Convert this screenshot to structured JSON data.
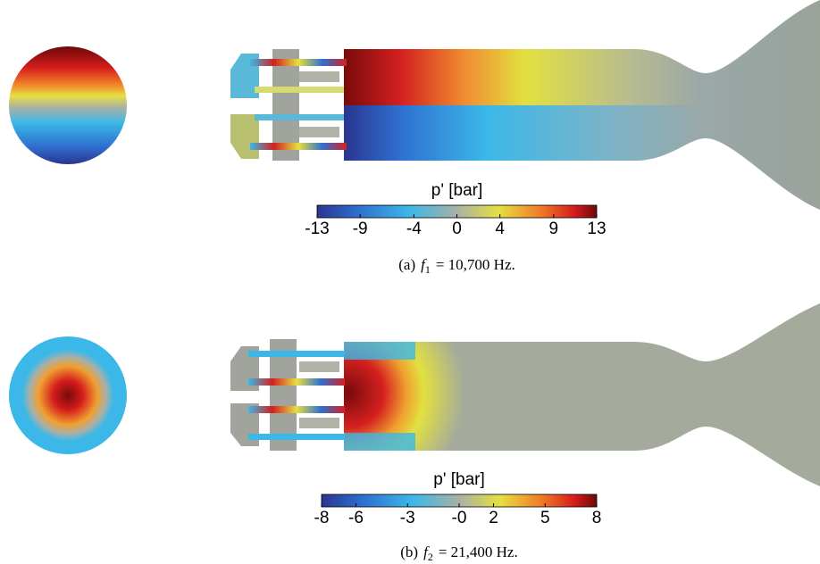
{
  "panels": [
    {
      "colorbar": {
        "label": "p' [bar]",
        "min": -13,
        "max": 13,
        "ticks": [
          -13,
          -9,
          -4,
          0,
          4,
          9,
          13
        ]
      },
      "caption": {
        "tag": "(a)",
        "symbol": "f",
        "subscript": "1",
        "text": "= 10,700 Hz."
      }
    },
    {
      "colorbar": {
        "label": "p' [bar]",
        "min": -8,
        "max": 8,
        "ticks": [
          -8,
          -6,
          -3,
          {
            "value": 0,
            "label": "-0"
          },
          2,
          5,
          8
        ]
      },
      "caption": {
        "tag": "(b)",
        "symbol": "f",
        "subscript": "2",
        "text": "= 21,400 Hz."
      }
    }
  ]
}
